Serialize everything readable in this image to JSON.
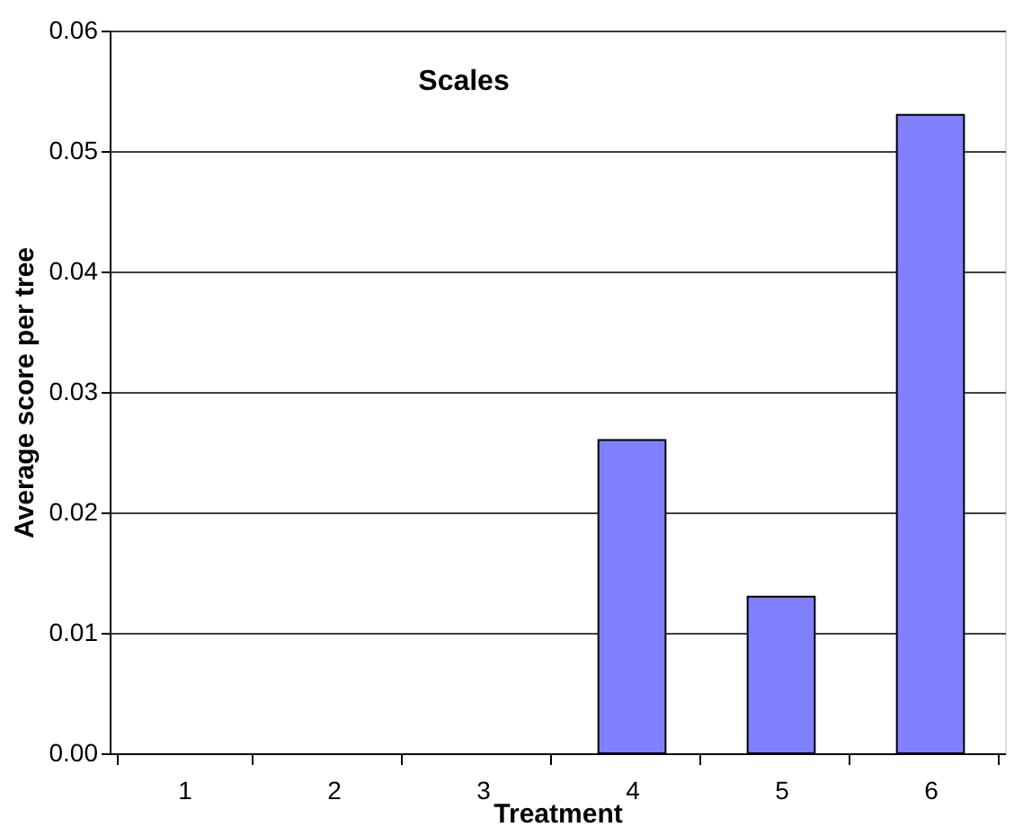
{
  "chart_data": {
    "type": "bar",
    "title": "Scales",
    "xlabel": "Treatment",
    "ylabel": "Average score per tree",
    "categories": [
      "1",
      "2",
      "3",
      "4",
      "5",
      "6"
    ],
    "values": [
      0,
      0,
      0,
      0.026,
      0.013,
      0.053
    ],
    "color": "#8080ff",
    "ylim": [
      0,
      0.06
    ],
    "yticks": [
      {
        "value": 0,
        "label": "0.00"
      },
      {
        "value": 0.01,
        "label": "0.01"
      },
      {
        "value": 0.02,
        "label": "0.02"
      },
      {
        "value": 0.03,
        "label": "0.03"
      },
      {
        "value": 0.04,
        "label": "0.04"
      },
      {
        "value": 0.05,
        "label": "0.05"
      },
      {
        "value": 0.06,
        "label": "0.06"
      }
    ],
    "grid": "y"
  }
}
